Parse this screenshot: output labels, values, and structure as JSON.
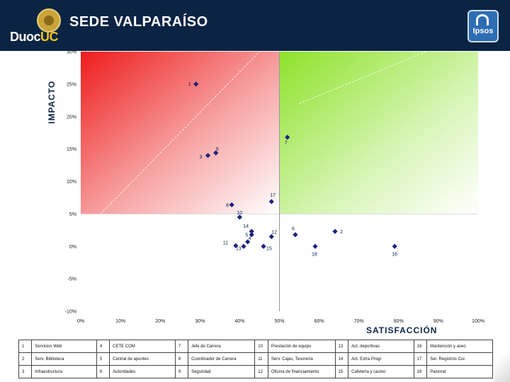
{
  "header": {
    "logo_text_main": "Duoc",
    "logo_text_accent": "UC",
    "title": "SEDE VALPARAÍSO",
    "ipsos_label": "Ipsos"
  },
  "colors": {
    "header_bg": "#0b2444",
    "point": "#1a237e",
    "red_quadrant": "#ee1c1c",
    "green_quadrant": "#8ee22a"
  },
  "chart_data": {
    "type": "scatter",
    "xlabel": "SATISFACCIÓN",
    "ylabel": "IMPACTO",
    "xlim": [
      0,
      100
    ],
    "ylim": [
      -10,
      30
    ],
    "x_ticks": [
      "0%",
      "10%",
      "20%",
      "30%",
      "40%",
      "50%",
      "60%",
      "70%",
      "80%",
      "90%",
      "100%"
    ],
    "y_ticks": [
      "-10%",
      "-5%",
      "0%",
      "5%",
      "10%",
      "15%",
      "20%",
      "25%",
      "30%"
    ],
    "grid": false,
    "points": [
      {
        "label": "1",
        "x": 29,
        "y": 25.0
      },
      {
        "label": "2",
        "x": 64,
        "y": 2.3
      },
      {
        "label": "3",
        "x": 32,
        "y": 14.0
      },
      {
        "label": "4",
        "x": 42,
        "y": 0.7
      },
      {
        "label": "5",
        "x": 43,
        "y": 1.8
      },
      {
        "label": "6",
        "x": 54,
        "y": 1.8
      },
      {
        "label": "7",
        "x": 52,
        "y": 16.8
      },
      {
        "label": "8",
        "x": 38,
        "y": 6.4
      },
      {
        "label": "9",
        "x": 34,
        "y": 14.4
      },
      {
        "label": "10",
        "x": 40,
        "y": 4.5
      },
      {
        "label": "11",
        "x": 39,
        "y": 0.1
      },
      {
        "label": "12",
        "x": 48,
        "y": 1.5
      },
      {
        "label": "13",
        "x": 41,
        "y": 0.0
      },
      {
        "label": "14",
        "x": 43,
        "y": 2.3
      },
      {
        "label": "15",
        "x": 46,
        "y": 0.0
      },
      {
        "label": "16",
        "x": 79,
        "y": 0.0
      },
      {
        "label": "17",
        "x": 48,
        "y": 6.9
      },
      {
        "label": "18",
        "x": 59,
        "y": 0.0
      }
    ]
  },
  "legend_rows": [
    [
      {
        "n": "1",
        "t": "Servicios Web"
      },
      {
        "n": "4",
        "t": "CETE COM"
      },
      {
        "n": "7",
        "t": "Jefe de Carrera"
      },
      {
        "n": "10",
        "t": "Prestación de equipo"
      },
      {
        "n": "13",
        "t": "Act. deportivas"
      },
      {
        "n": "16",
        "t": "Mantención y aseo"
      }
    ],
    [
      {
        "n": "2",
        "t": "Serv. Biblioteca"
      },
      {
        "n": "5",
        "t": "Central de apuntes"
      },
      {
        "n": "8",
        "t": "Coordinador de Carrera"
      },
      {
        "n": "11",
        "t": "Serv. Cajas, Tesorería"
      },
      {
        "n": "14",
        "t": "Act. Extra Progr"
      },
      {
        "n": "17",
        "t": "Ser. Registros Cur."
      }
    ],
    [
      {
        "n": "3",
        "t": "Infraestructura"
      },
      {
        "n": "6",
        "t": "Autoridades"
      },
      {
        "n": "9",
        "t": "Seguridad"
      },
      {
        "n": "12",
        "t": "Oficina de financiamiento"
      },
      {
        "n": "15",
        "t": "Cafetería y casino"
      },
      {
        "n": "18",
        "t": "Pastoral"
      }
    ]
  ]
}
